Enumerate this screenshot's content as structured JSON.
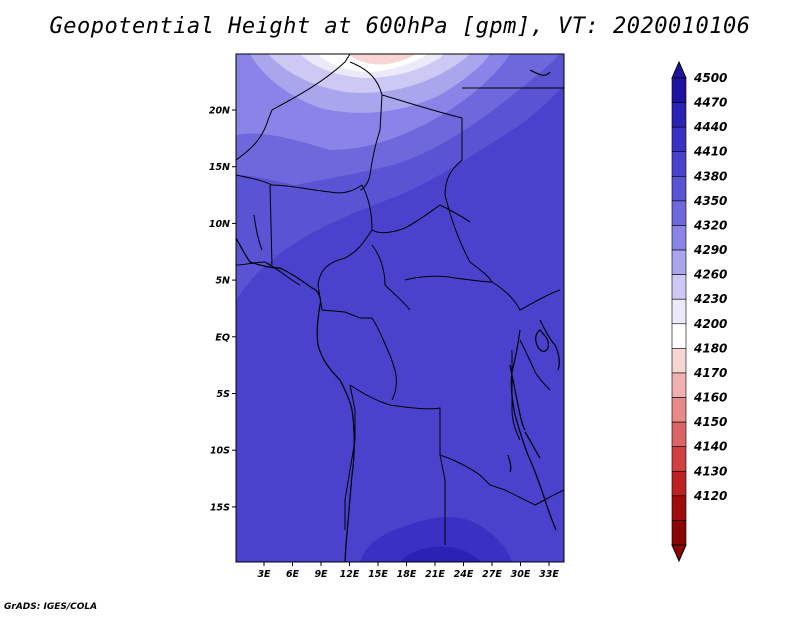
{
  "title": "Geopotential Height at 600hPa [gpm], VT: 2020010106",
  "credit": "GrADS: IGES/COLA",
  "map": {
    "lat_labels": [
      "20N",
      "15N",
      "10N",
      "5N",
      "EQ",
      "5S",
      "10S",
      "15S"
    ],
    "lon_labels": [
      "3E",
      "6E",
      "9E",
      "12E",
      "15E",
      "18E",
      "21E",
      "24E",
      "27E",
      "30E",
      "33E"
    ]
  },
  "colorbar": {
    "labels": [
      "4500",
      "4470",
      "4440",
      "4410",
      "4380",
      "4350",
      "4320",
      "4290",
      "4260",
      "4230",
      "4200",
      "4180",
      "4170",
      "4160",
      "4150",
      "4140",
      "4130",
      "4120"
    ],
    "colors": [
      "#1e12a0",
      "#2a22b4",
      "#3a30c4",
      "#4a42cc",
      "#5a54d4",
      "#6e68dc",
      "#8a84e8",
      "#aaa6ee",
      "#cccaf4",
      "#eceaf8",
      "#ffffff",
      "#f8d6d6",
      "#f0b0b0",
      "#e68a8a",
      "#dc6464",
      "#d04040",
      "#bc2222",
      "#a00c0c",
      "#8a0404"
    ]
  },
  "colors": {
    "background_field": "#4a42cc",
    "border": "#000000"
  }
}
